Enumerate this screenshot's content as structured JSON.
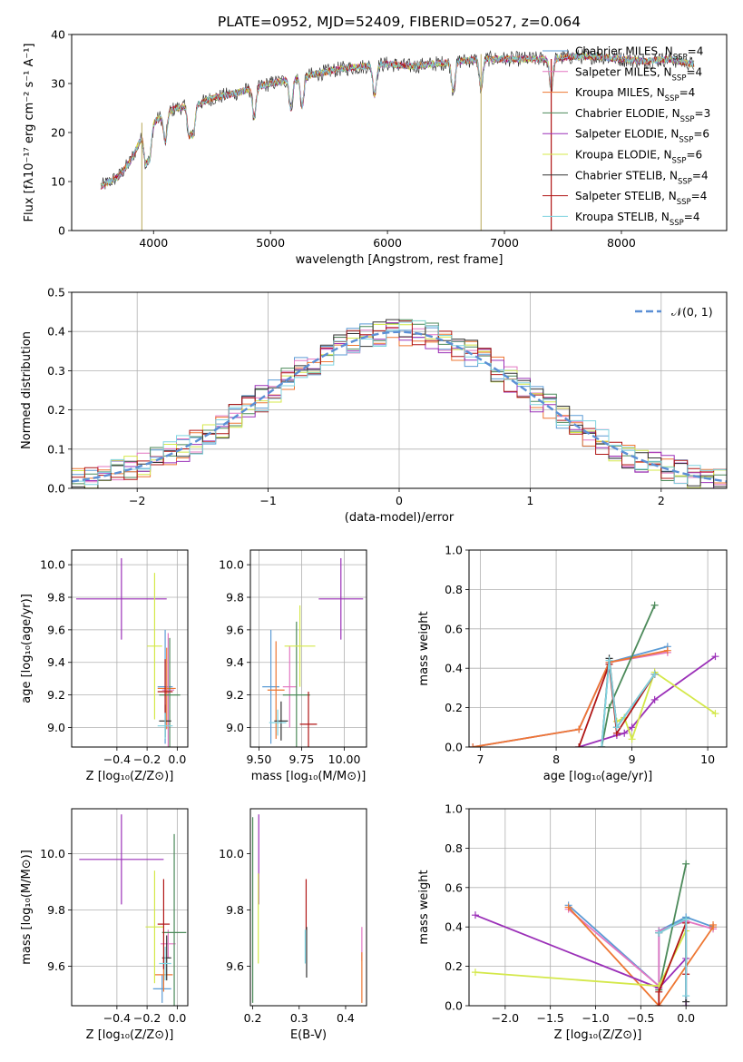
{
  "figure_title": "PLATE=0952, MJD=52409, FIBERID=0527, z=0.064",
  "models": [
    {
      "name": "Chabrier MILES",
      "nssp": "4",
      "color": "#5b9bd5"
    },
    {
      "name": "Salpeter MILES",
      "nssp": "4",
      "color": "#e377c2"
    },
    {
      "name": "Kroupa MILES",
      "nssp": "4",
      "color": "#ee7733"
    },
    {
      "name": "Chabrier ELODIE",
      "nssp": "3",
      "color": "#4c8a5a"
    },
    {
      "name": "Salpeter ELODIE",
      "nssp": "6",
      "color": "#9b30b8"
    },
    {
      "name": "Kroupa ELODIE",
      "nssp": "6",
      "color": "#d4e84a"
    },
    {
      "name": "Chabrier STELIB",
      "nssp": "4",
      "color": "#333333"
    },
    {
      "name": "Salpeter STELIB",
      "nssp": "4",
      "color": "#b01515"
    },
    {
      "name": "Kroupa STELIB",
      "nssp": "4",
      "color": "#7fd3e0"
    }
  ],
  "chart_data": [
    {
      "id": "spectrum",
      "type": "line",
      "xlabel": "wavelength [Angstrom, rest frame]",
      "ylabel": "Flux [fλ10⁻¹⁷ erg cm⁻² s⁻¹ A⁻¹]",
      "xlim": [
        3300,
        8900
      ],
      "ylim": [
        0,
        40
      ],
      "xticks": [
        4000,
        5000,
        6000,
        7000,
        8000
      ],
      "yticks": [
        0,
        10,
        20,
        30,
        40
      ],
      "grid": false,
      "legend_position": "right",
      "continuum": {
        "x": [
          3550,
          3700,
          3800,
          3900,
          4000,
          4100,
          4200,
          4300,
          4400,
          4500,
          4700,
          5000,
          5200,
          5400,
          5600,
          5800,
          6000,
          6200,
          6400,
          6600,
          6800,
          7000,
          7200,
          7400,
          7600,
          7800,
          8000,
          8200,
          8400,
          8600
        ],
        "y": [
          9,
          11,
          14,
          19,
          22,
          24,
          25,
          25.5,
          26,
          27,
          28,
          30,
          31,
          32,
          33,
          33.5,
          34,
          33.5,
          34,
          34.5,
          35,
          35,
          35,
          35,
          35.5,
          35.5,
          35,
          34.5,
          35,
          34
        ]
      },
      "absorption_features": [
        3934,
        3968,
        4101,
        4304,
        4340,
        4861,
        5175,
        5270,
        5890,
        6563,
        6800,
        7400
      ]
    },
    {
      "id": "residuals",
      "type": "line",
      "xlabel": "(data-model)/error",
      "ylabel": "Normed distribution",
      "xlim": [
        -2.5,
        2.5
      ],
      "ylim": [
        0,
        0.5
      ],
      "xticks": [
        -2,
        -1,
        0,
        1,
        2
      ],
      "yticks": [
        0.0,
        0.1,
        0.2,
        0.3,
        0.4,
        0.5
      ],
      "grid": true,
      "reference_curve": "𝒩(0, 1)",
      "legend_position": "top-right"
    },
    {
      "id": "z_age",
      "type": "scatter",
      "xlabel": "Z [log₁₀(Z/Z⊙)]",
      "ylabel": "age  [log₁₀(age/yr)]",
      "xlim": [
        -0.7,
        0.07
      ],
      "ylim": [
        8.88,
        10.09
      ],
      "xticks": [
        -0.4,
        -0.2,
        0.0
      ],
      "yticks": [
        9.0,
        9.2,
        9.4,
        9.6,
        9.8,
        10.0
      ],
      "grid": true,
      "points": [
        {
          "x": -0.08,
          "y": 9.25,
          "xerr": 0.05,
          "yerr": 0.35
        },
        {
          "x": -0.06,
          "y": 9.23,
          "xerr": 0.04,
          "yerr": 0.35
        },
        {
          "x": -0.07,
          "y": 9.24,
          "xerr": 0.06,
          "yerr": 0.25
        },
        {
          "x": -0.05,
          "y": 9.2,
          "xerr": 0.07,
          "yerr": 0.35
        },
        {
          "x": -0.37,
          "y": 9.79,
          "xerr": 0.3,
          "yerr": 0.25
        },
        {
          "x": -0.15,
          "y": 9.5,
          "xerr": 0.05,
          "yerr": 0.45
        },
        {
          "x": -0.08,
          "y": 9.04,
          "xerr": 0.04,
          "yerr": 0.1
        },
        {
          "x": -0.08,
          "y": 9.22,
          "xerr": 0.05,
          "yerr": 0.2
        },
        {
          "x": -0.08,
          "y": 9.01,
          "xerr": 0.05,
          "yerr": 0.08
        }
      ]
    },
    {
      "id": "mass_age",
      "type": "scatter",
      "xlabel": "mass [log₁₀(M/M⊙)]",
      "ylabel": "",
      "xlim": [
        9.45,
        10.13
      ],
      "ylim": [
        8.88,
        10.09
      ],
      "xticks": [
        9.5,
        9.75,
        10.0
      ],
      "yticks": [
        9.0,
        9.2,
        9.4,
        9.6,
        9.8,
        10.0
      ],
      "grid": true,
      "points": [
        {
          "x": 9.57,
          "y": 9.25,
          "xerr": 0.05,
          "yerr": 0.35
        },
        {
          "x": 9.68,
          "y": 9.25,
          "xerr": 0.04,
          "yerr": 0.25
        },
        {
          "x": 9.6,
          "y": 9.23,
          "xerr": 0.05,
          "yerr": 0.3
        },
        {
          "x": 9.72,
          "y": 9.2,
          "xerr": 0.08,
          "yerr": 0.45
        },
        {
          "x": 9.98,
          "y": 9.79,
          "xerr": 0.13,
          "yerr": 0.25
        },
        {
          "x": 9.74,
          "y": 9.5,
          "xerr": 0.09,
          "yerr": 0.25
        },
        {
          "x": 9.63,
          "y": 9.04,
          "xerr": 0.04,
          "yerr": 0.12
        },
        {
          "x": 9.79,
          "y": 9.02,
          "xerr": 0.05,
          "yerr": 0.2
        },
        {
          "x": 9.61,
          "y": 9.03,
          "xerr": 0.05,
          "yerr": 0.08
        }
      ]
    },
    {
      "id": "age_weight",
      "type": "line",
      "xlabel": "age  [log₁₀(age/yr)]",
      "ylabel": "mass weight",
      "xlim": [
        6.85,
        10.25
      ],
      "ylim": [
        0,
        1
      ],
      "xticks": [
        7,
        8,
        9,
        10
      ],
      "yticks": [
        0.0,
        0.2,
        0.4,
        0.6,
        0.8,
        1.0
      ],
      "grid": true,
      "series": [
        {
          "x": [
            6.9,
            8.3,
            8.7,
            9.47
          ],
          "y": [
            0.0,
            0.09,
            0.43,
            0.51
          ]
        },
        {
          "x": [
            6.9,
            8.3,
            8.7,
            9.47
          ],
          "y": [
            0.0,
            0.09,
            0.43,
            0.48
          ]
        },
        {
          "x": [
            6.9,
            8.3,
            8.7,
            9.47
          ],
          "y": [
            0.0,
            0.09,
            0.43,
            0.49
          ]
        },
        {
          "x": [
            8.6,
            8.7,
            9.3
          ],
          "y": [
            0.0,
            0.2,
            0.72
          ]
        },
        {
          "x": [
            8.3,
            8.8,
            8.9,
            9.0,
            9.3,
            10.1
          ],
          "y": [
            0.0,
            0.06,
            0.07,
            0.1,
            0.24,
            0.46
          ]
        },
        {
          "x": [
            8.8,
            8.9,
            9.0,
            9.3,
            10.1
          ],
          "y": [
            0.13,
            0.15,
            0.04,
            0.38,
            0.17
          ]
        },
        {
          "x": [
            8.6,
            8.7,
            8.8,
            9.3
          ],
          "y": [
            0.0,
            0.45,
            0.1,
            0.37
          ]
        },
        {
          "x": [
            8.3,
            8.7,
            8.8,
            9.3
          ],
          "y": [
            0.0,
            0.42,
            0.07,
            0.37
          ]
        },
        {
          "x": [
            8.6,
            8.7,
            8.8,
            9.3
          ],
          "y": [
            0.0,
            0.44,
            0.1,
            0.37
          ]
        }
      ]
    },
    {
      "id": "z_mass",
      "type": "scatter",
      "xlabel": "Z [log₁₀(Z/Z⊙)]",
      "ylabel": "mass [log₁₀(M/M⊙)]",
      "xlim": [
        -0.7,
        0.07
      ],
      "ylim": [
        9.46,
        10.16
      ],
      "xticks": [
        -0.4,
        -0.2,
        0.0
      ],
      "yticks": [
        9.6,
        9.8,
        10.0
      ],
      "grid": true,
      "points": [
        {
          "x": -0.1,
          "y": 9.52,
          "xerr": 0.06,
          "yerr": 0.05
        },
        {
          "x": -0.06,
          "y": 9.68,
          "xerr": 0.05,
          "yerr": 0.05
        },
        {
          "x": -0.09,
          "y": 9.57,
          "xerr": 0.06,
          "yerr": 0.06
        },
        {
          "x": -0.02,
          "y": 9.72,
          "xerr": 0.08,
          "yerr": 0.35
        },
        {
          "x": -0.37,
          "y": 9.98,
          "xerr": 0.28,
          "yerr": 0.16
        },
        {
          "x": -0.15,
          "y": 9.74,
          "xerr": 0.06,
          "yerr": 0.2
        },
        {
          "x": -0.07,
          "y": 9.63,
          "xerr": 0.03,
          "yerr": 0.08
        },
        {
          "x": -0.09,
          "y": 9.75,
          "xerr": 0.04,
          "yerr": 0.16
        },
        {
          "x": -0.08,
          "y": 9.61,
          "xerr": 0.04,
          "yerr": 0.06
        }
      ]
    },
    {
      "id": "ebv_mass",
      "type": "scatter",
      "xlabel": "E(B-V)",
      "ylabel": "",
      "xlim": [
        0.195,
        0.445
      ],
      "ylim": [
        9.46,
        10.16
      ],
      "xticks": [
        0.2,
        0.3,
        0.4
      ],
      "yticks": [
        9.6,
        9.8,
        10.0
      ],
      "grid": false,
      "points": [
        {
          "x": 0.2,
          "y": 9.8,
          "xerr": 0.0,
          "yerr": 0.33
        },
        {
          "x": 0.213,
          "y": 9.98,
          "xerr": 0.0,
          "yerr": 0.16
        },
        {
          "x": 0.212,
          "y": 9.77,
          "xerr": 0.0,
          "yerr": 0.16
        },
        {
          "x": 0.315,
          "y": 9.82,
          "xerr": 0.0,
          "yerr": 0.09
        },
        {
          "x": 0.316,
          "y": 9.65,
          "xerr": 0.0,
          "yerr": 0.09
        },
        {
          "x": 0.313,
          "y": 9.67,
          "xerr": 0.0,
          "yerr": 0.06
        },
        {
          "x": 0.435,
          "y": 9.68,
          "xerr": 0.0,
          "yerr": 0.06
        },
        {
          "x": 0.435,
          "y": 9.56,
          "xerr": 0.0,
          "yerr": 0.09
        }
      ]
    },
    {
      "id": "z_weight",
      "type": "line",
      "xlabel": "Z [log₁₀(Z/Z⊙)]",
      "ylabel": "mass weight",
      "xlim": [
        -2.4,
        0.45
      ],
      "ylim": [
        0,
        1
      ],
      "xticks": [
        -2.0,
        -1.5,
        -1.0,
        -0.5,
        0.0
      ],
      "yticks": [
        0.0,
        0.2,
        0.4,
        0.6,
        0.8,
        1.0
      ],
      "grid": true,
      "series": [
        {
          "x": [
            -1.3,
            -0.3,
            -0.3,
            0.0,
            0.3
          ],
          "y": [
            0.51,
            0.1,
            0.38,
            0.45,
            0.4
          ]
        },
        {
          "x": [
            -1.3,
            -0.3,
            -0.3,
            0.0,
            0.3
          ],
          "y": [
            0.49,
            0.1,
            0.38,
            0.43,
            0.39
          ]
        },
        {
          "x": [
            -1.3,
            -0.3,
            0.3,
            0.3
          ],
          "y": [
            0.5,
            0.0,
            0.4,
            0.41
          ]
        },
        {
          "x": [
            -0.3,
            0.0
          ],
          "y": [
            0.08,
            0.72
          ]
        },
        {
          "x": [
            -2.33,
            -0.3,
            0.0,
            0.0
          ],
          "y": [
            0.46,
            0.09,
            0.24,
            0.0
          ]
        },
        {
          "x": [
            -2.33,
            -0.3,
            0.0
          ],
          "y": [
            0.17,
            0.1,
            0.38
          ]
        },
        {
          "x": [
            -0.3,
            0.0,
            0.0
          ],
          "y": [
            0.37,
            0.44,
            0.02
          ]
        },
        {
          "x": [
            -0.3,
            -0.3,
            0.0,
            0.0
          ],
          "y": [
            0.0,
            0.07,
            0.42,
            0.16
          ]
        },
        {
          "x": [
            -0.3,
            0.0,
            0.0
          ],
          "y": [
            0.37,
            0.44,
            0.05
          ]
        }
      ]
    }
  ]
}
